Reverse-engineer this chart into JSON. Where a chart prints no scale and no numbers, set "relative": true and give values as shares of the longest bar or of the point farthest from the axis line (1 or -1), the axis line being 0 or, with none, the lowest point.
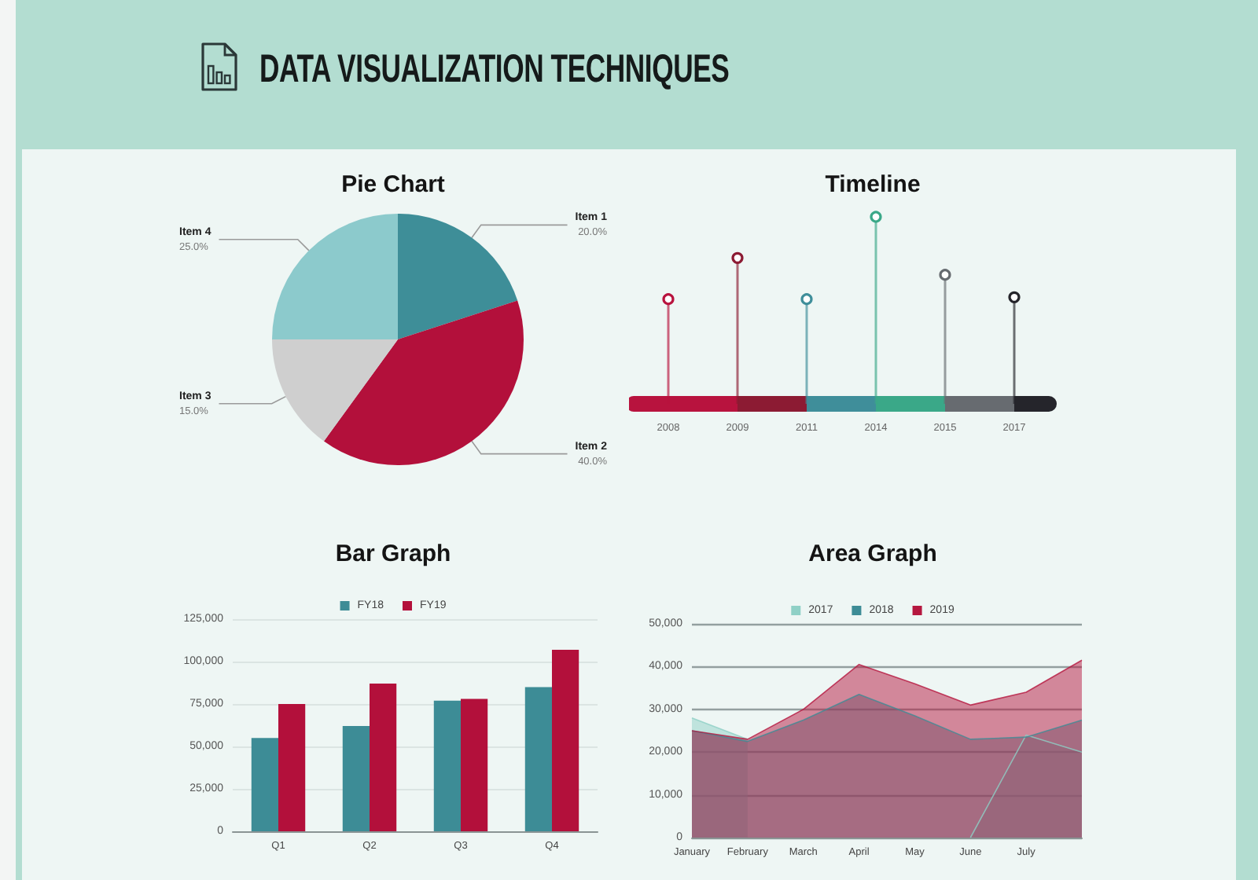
{
  "chart_data": [
    {
      "type": "other",
      "title": "DATA VISUALIZATION TECHNIQUES"
    },
    {
      "type": "pie",
      "title": "Pie Chart",
      "categories": [
        "Item 1",
        "Item 2",
        "Item 3",
        "Item 4"
      ],
      "values": [
        20,
        40,
        15,
        25
      ],
      "colors": [
        "#3e8e98",
        "#b3103b",
        "#cfcfcf",
        "#8ccacc"
      ],
      "value_labels": [
        "20.0%",
        "40.0%",
        "15.0%",
        "25.0%"
      ]
    },
    {
      "type": "lollipop",
      "title": "Timeline",
      "categories": [
        "2008",
        "2009",
        "2011",
        "2014",
        "2015",
        "2017"
      ],
      "values": [
        0.56,
        0.78,
        0.56,
        1,
        0.69,
        0.57
      ],
      "colors": [
        "#b8133e",
        "#8c1b33",
        "#3f8e9a",
        "#3aa888",
        "#676b70",
        "#25252b"
      ],
      "relative": true,
      "marker": "circle"
    },
    {
      "type": "bar",
      "title": "Bar Graph",
      "categories": [
        "Q1",
        "Q2",
        "Q3",
        "Q4"
      ],
      "series": [
        {
          "name": "FY18",
          "color": "#3d8c96",
          "values": [
            55000,
            62000,
            77000,
            85000
          ]
        },
        {
          "name": "FY19",
          "color": "#b3103b",
          "values": [
            75000,
            87000,
            78000,
            107000
          ]
        }
      ],
      "ylim": [
        0,
        125000
      ],
      "yticks": [
        0,
        {
          "value": 25000,
          "label": "25,000"
        },
        {
          "value": 50000,
          "label": "50,000"
        },
        {
          "value": 75000,
          "label": "75,000"
        },
        {
          "value": 100000,
          "label": "100,000"
        },
        {
          "value": 125000,
          "label": "125,000"
        }
      ],
      "grid": "y",
      "legend": "top"
    },
    {
      "type": "area",
      "title": "Area Graph",
      "categories": [
        "January",
        "February",
        "March",
        "April",
        "May",
        "June",
        "July",
        null
      ],
      "series": [
        {
          "name": "2017",
          "color": "#8fd0c6",
          "values": [
            28000,
            23000,
            null,
            null,
            null,
            0,
            24000,
            20000
          ]
        },
        {
          "name": "2018",
          "color": "#3d8c96",
          "values": [
            25000,
            22500,
            27500,
            33500,
            28500,
            23000,
            23500,
            27500
          ]
        },
        {
          "name": "2019",
          "color": "#b5173f",
          "values": [
            25000,
            23000,
            30000,
            40500,
            36000,
            31000,
            34000,
            41500
          ]
        }
      ],
      "ylim": [
        0,
        50000
      ],
      "yticks": [
        0,
        {
          "value": 10000,
          "label": "10,000"
        },
        {
          "value": 20000,
          "label": "20,000"
        },
        {
          "value": 30000,
          "label": "30,000"
        },
        {
          "value": 40000,
          "label": "40,000"
        },
        {
          "value": 50000,
          "label": "50,000"
        }
      ],
      "grid": "y",
      "legend": "top"
    }
  ]
}
